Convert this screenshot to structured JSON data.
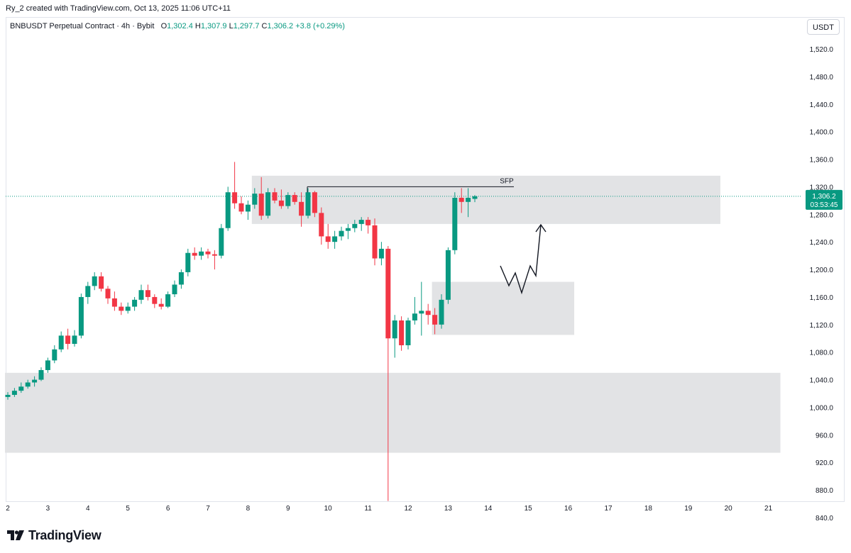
{
  "header": {
    "created_by": "Ry_2 created with TradingView.com, Oct 13, 2025 11:06 UTC+11"
  },
  "legend": {
    "symbol": "BNBUSDT Perpetual Contract · 4h · Bybit",
    "o_label": "O",
    "o_value": "1,302.4",
    "h_label": "H",
    "h_value": "1,307.9",
    "l_label": "L",
    "l_value": "1,297.7",
    "c_label": "C",
    "c_value": "1,306.2",
    "change": "+3.8 (+0.29%)"
  },
  "currency": "USDT",
  "price_badge": {
    "price": "1,306.2",
    "countdown": "03:53:45"
  },
  "footer": {
    "brand": "TradingView"
  },
  "colors": {
    "up": "#089981",
    "down": "#f23645",
    "zone": "#e2e3e5",
    "accent": "#089981"
  },
  "chart_data": {
    "type": "candlestick",
    "timeframe": "4h",
    "ylim": [
      820,
      1560
    ],
    "y_ticks": [
      "1,520.0",
      "1,480.0",
      "1,440.0",
      "1,400.0",
      "1,360.0",
      "1,320.0",
      "1,280.0",
      "1,240.0",
      "1,200.0",
      "1,160.0",
      "1,120.0",
      "1,080.0",
      "1,040.0",
      "1,000.0",
      "960.0",
      "920.0",
      "880.0",
      "840.0"
    ],
    "x_ticks": [
      "2",
      "3",
      "4",
      "5",
      "6",
      "7",
      "8",
      "9",
      "10",
      "11",
      "12",
      "13",
      "14",
      "15",
      "16",
      "17",
      "18",
      "19",
      "20",
      "21"
    ],
    "last_price": 1306.2,
    "candles": [
      [
        1015,
        1022,
        1011,
        1018
      ],
      [
        1018,
        1028,
        1015,
        1024
      ],
      [
        1024,
        1036,
        1021,
        1030
      ],
      [
        1030,
        1040,
        1027,
        1036
      ],
      [
        1036,
        1045,
        1030,
        1040
      ],
      [
        1040,
        1058,
        1038,
        1054
      ],
      [
        1054,
        1072,
        1050,
        1068
      ],
      [
        1068,
        1090,
        1064,
        1084
      ],
      [
        1084,
        1110,
        1080,
        1104
      ],
      [
        1104,
        1114,
        1084,
        1092
      ],
      [
        1092,
        1112,
        1088,
        1104
      ],
      [
        1104,
        1165,
        1100,
        1160
      ],
      [
        1160,
        1182,
        1150,
        1176
      ],
      [
        1176,
        1196,
        1170,
        1190
      ],
      [
        1190,
        1196,
        1168,
        1172
      ],
      [
        1172,
        1176,
        1150,
        1158
      ],
      [
        1158,
        1168,
        1140,
        1146
      ],
      [
        1146,
        1152,
        1134,
        1140
      ],
      [
        1140,
        1152,
        1136,
        1146
      ],
      [
        1146,
        1160,
        1140,
        1156
      ],
      [
        1156,
        1178,
        1150,
        1170
      ],
      [
        1170,
        1178,
        1155,
        1160
      ],
      [
        1160,
        1164,
        1144,
        1150
      ],
      [
        1150,
        1158,
        1142,
        1146
      ],
      [
        1146,
        1168,
        1144,
        1164
      ],
      [
        1164,
        1184,
        1160,
        1178
      ],
      [
        1178,
        1200,
        1172,
        1196
      ],
      [
        1196,
        1230,
        1190,
        1224
      ],
      [
        1224,
        1232,
        1214,
        1220
      ],
      [
        1220,
        1232,
        1214,
        1226
      ],
      [
        1226,
        1230,
        1216,
        1222
      ],
      [
        1222,
        1228,
        1200,
        1220
      ],
      [
        1220,
        1266,
        1216,
        1260
      ],
      [
        1260,
        1320,
        1256,
        1312
      ],
      [
        1312,
        1356,
        1288,
        1296
      ],
      [
        1296,
        1306,
        1280,
        1284
      ],
      [
        1284,
        1300,
        1272,
        1294
      ],
      [
        1294,
        1318,
        1288,
        1310
      ],
      [
        1310,
        1334,
        1272,
        1278
      ],
      [
        1278,
        1318,
        1274,
        1312
      ],
      [
        1312,
        1318,
        1296,
        1300
      ],
      [
        1300,
        1316,
        1288,
        1292
      ],
      [
        1292,
        1312,
        1288,
        1308
      ],
      [
        1308,
        1312,
        1294,
        1298
      ],
      [
        1298,
        1312,
        1262,
        1278
      ],
      [
        1278,
        1318,
        1274,
        1312
      ],
      [
        1312,
        1314,
        1276,
        1282
      ],
      [
        1282,
        1290,
        1236,
        1248
      ],
      [
        1248,
        1266,
        1230,
        1240
      ],
      [
        1240,
        1256,
        1230,
        1248
      ],
      [
        1248,
        1262,
        1242,
        1256
      ],
      [
        1256,
        1266,
        1244,
        1260
      ],
      [
        1260,
        1272,
        1254,
        1266
      ],
      [
        1266,
        1276,
        1256,
        1272
      ],
      [
        1272,
        1276,
        1252,
        1264
      ],
      [
        1264,
        1274,
        1206,
        1216
      ],
      [
        1216,
        1240,
        1206,
        1230
      ],
      [
        1230,
        1234,
        864,
        1100
      ],
      [
        1100,
        1134,
        1072,
        1126
      ],
      [
        1126,
        1132,
        1082,
        1090
      ],
      [
        1090,
        1130,
        1084,
        1126
      ],
      [
        1126,
        1160,
        1120,
        1136
      ],
      [
        1136,
        1182,
        1104,
        1140
      ],
      [
        1140,
        1150,
        1120,
        1134
      ],
      [
        1134,
        1144,
        1106,
        1120
      ],
      [
        1120,
        1164,
        1114,
        1156
      ],
      [
        1156,
        1232,
        1150,
        1228
      ],
      [
        1228,
        1312,
        1222,
        1304
      ],
      [
        1304,
        1318,
        1282,
        1298
      ],
      [
        1298,
        1318,
        1276,
        1304
      ],
      [
        1302.4,
        1307.9,
        1297.7,
        1306.2
      ]
    ],
    "zones": [
      {
        "price_top": 1336,
        "price_bottom": 1266,
        "start_candle": 37,
        "end_day": 19.8
      },
      {
        "price_top": 1182,
        "price_bottom": 1105,
        "start_candle": 64,
        "end_day": 16.15
      },
      {
        "price_top": 1050,
        "price_bottom": 934,
        "start_candle": 0,
        "end_day": 21.3
      }
    ],
    "annotations": [
      {
        "type": "line",
        "label": "SFP",
        "price": 1320
      },
      {
        "type": "projection_path"
      }
    ]
  }
}
